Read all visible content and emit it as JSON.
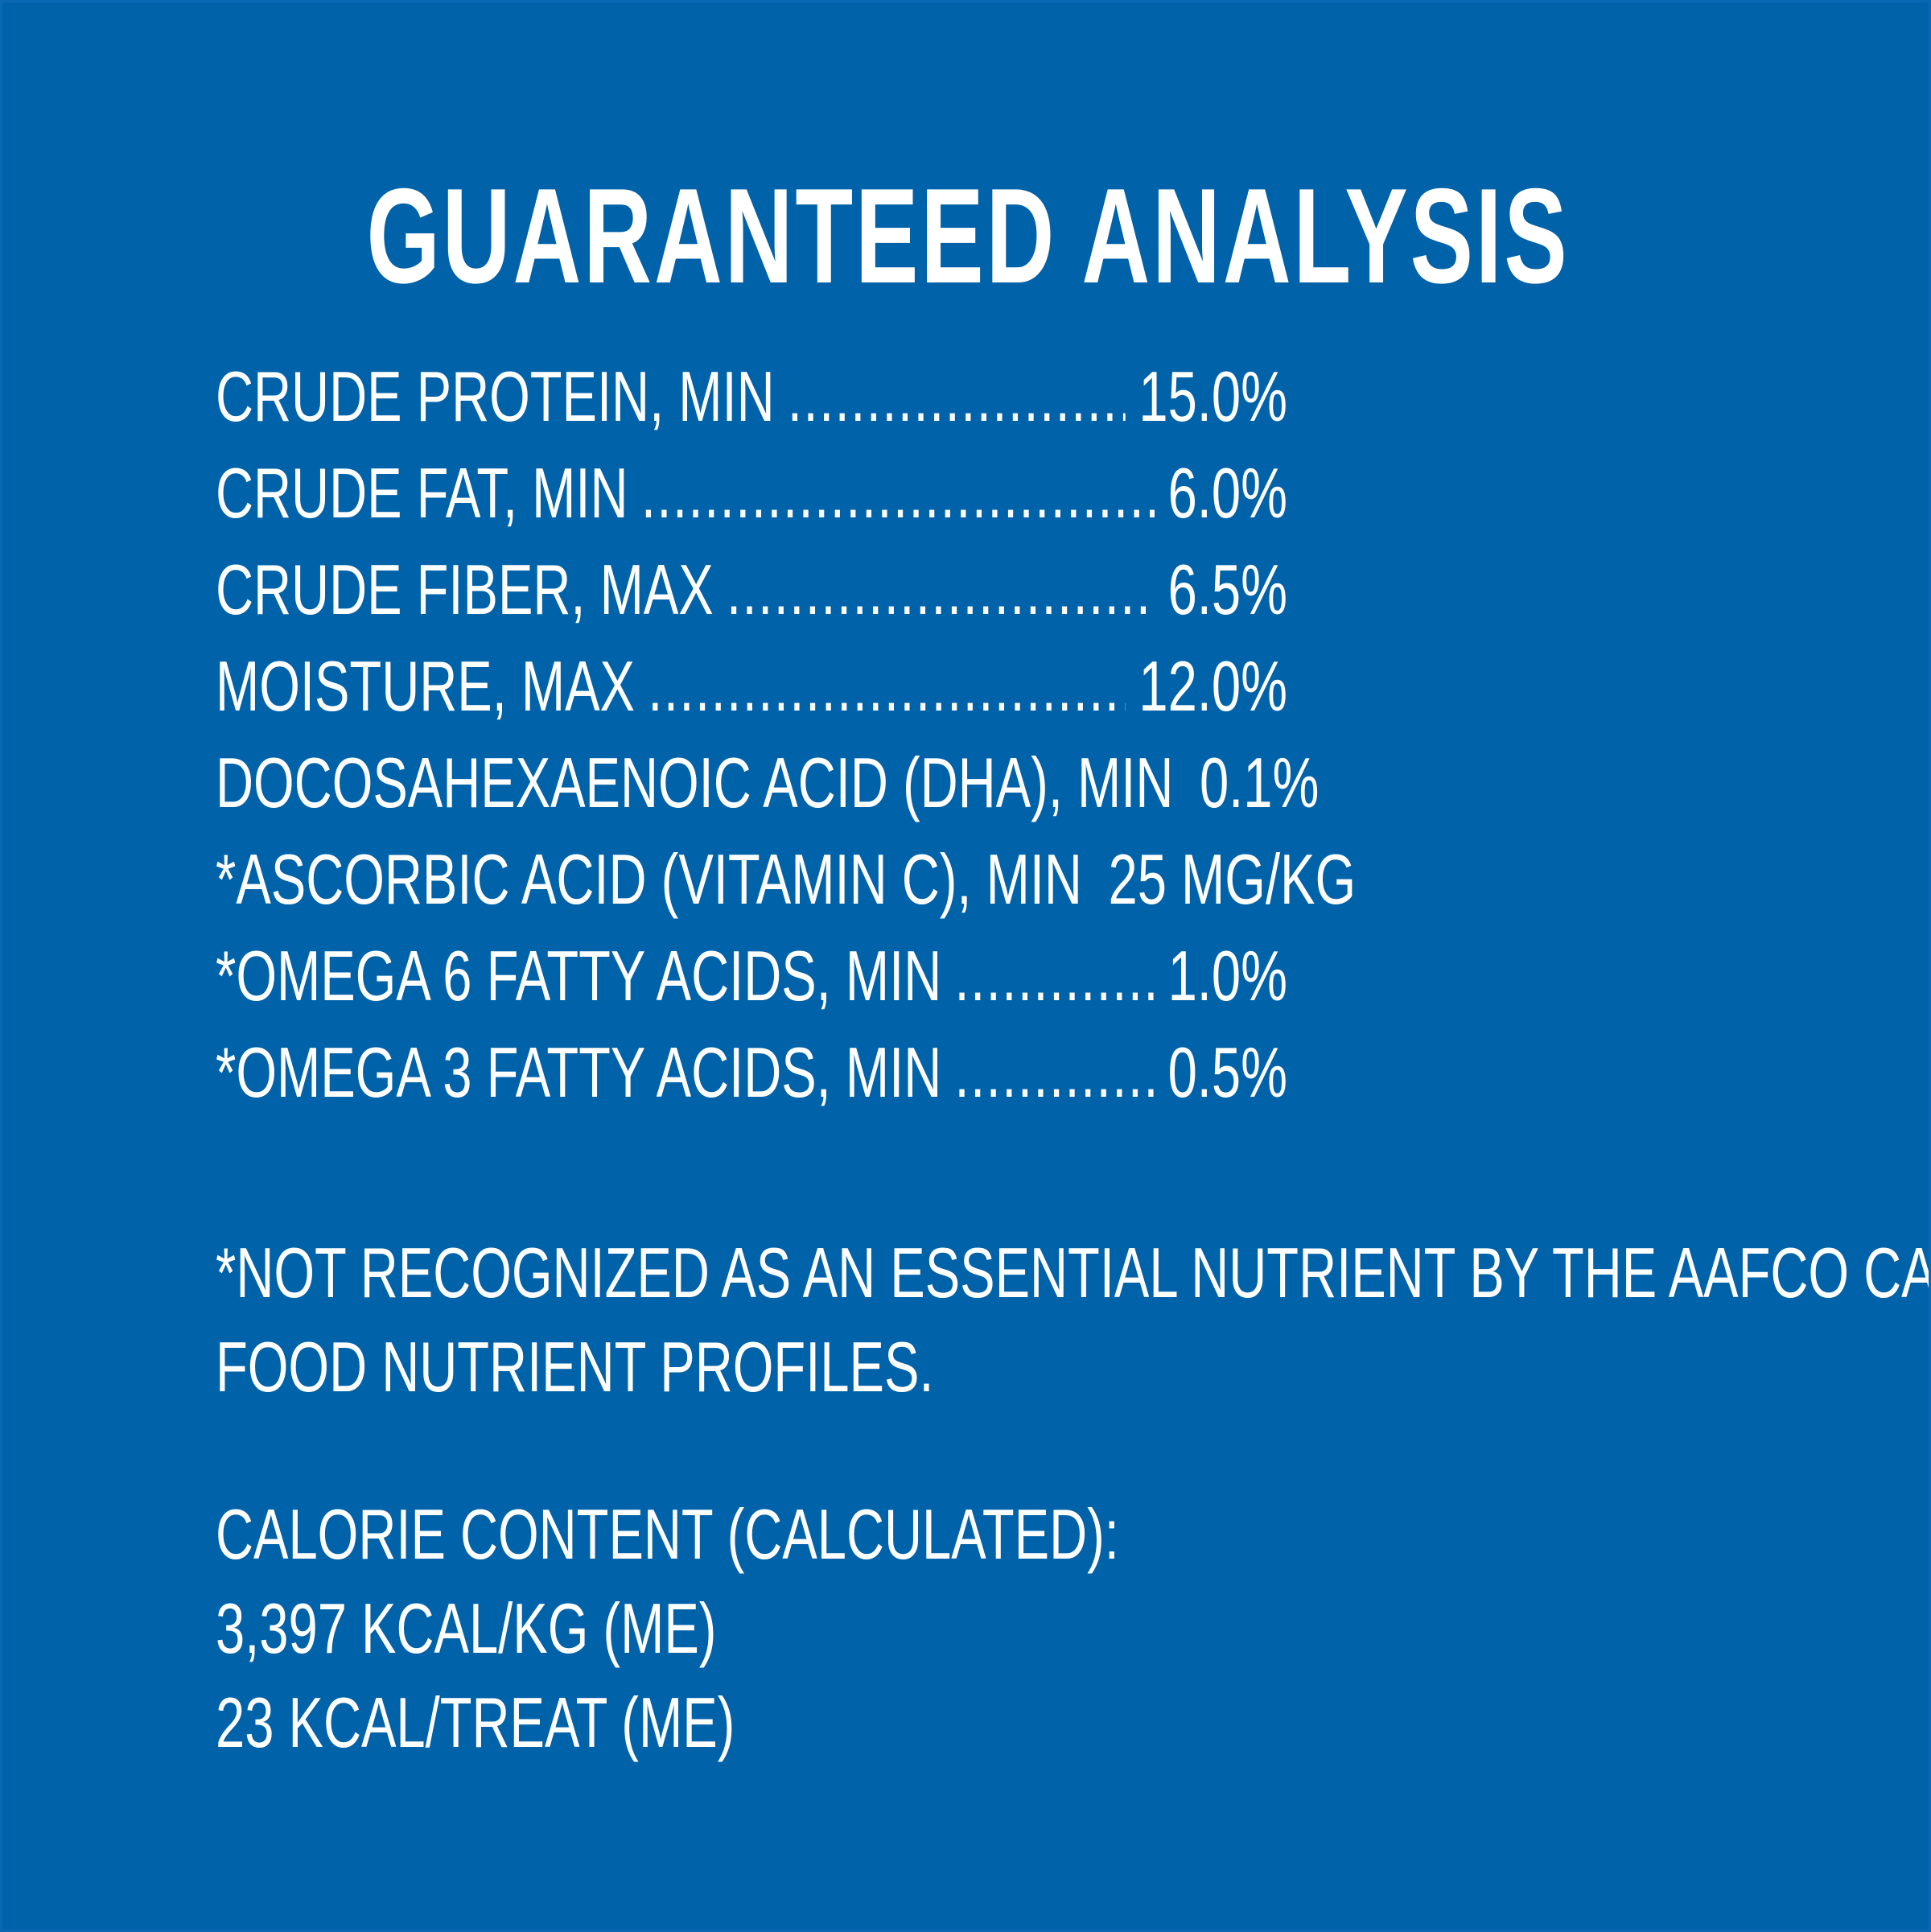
{
  "colors": {
    "background": "#0062a9",
    "text": "#ffffff"
  },
  "title": "GUARANTEED ANALYSIS",
  "rows": [
    {
      "label": "CRUDE PROTEIN, MIN",
      "value": "15.0%"
    },
    {
      "label": "CRUDE FAT, MIN",
      "value": "6.0%"
    },
    {
      "label": "CRUDE FIBER, MAX",
      "value": "6.5%"
    },
    {
      "label": "MOISTURE, MAX",
      "value": "12.0%"
    },
    {
      "label": "DOCOSAHEXAENOIC ACID (DHA), MIN",
      "value": "0.1%"
    },
    {
      "label": "*ASCORBIC ACID (VITAMIN C), MIN",
      "value": "25 MG/KG"
    },
    {
      "label": "*OMEGA 6 FATTY ACIDS, MIN",
      "value": "1.0%"
    },
    {
      "label": "*OMEGA 3 FATTY ACIDS, MIN",
      "value": "0.5%"
    }
  ],
  "footnote": {
    "line1": "*NOT RECOGNIZED AS AN ESSENTIAL NUTRIENT BY THE AAFCO CAT",
    "line2": "FOOD NUTRIENT PROFILES."
  },
  "calorie": {
    "heading": "CALORIE CONTENT (CALCULATED):",
    "per_kg": "3,397 KCAL/KG (ME)",
    "per_treat": "23 KCAL/TREAT (ME)"
  }
}
